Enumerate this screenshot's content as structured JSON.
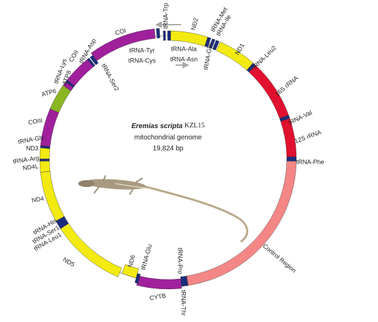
{
  "title": {
    "species": "Eremias scripta",
    "specimen": "KZL15",
    "subtitle": "mitochondrial genome",
    "length": "19,824 bp"
  },
  "labels": [
    "tRNA-Trp",
    "ND2",
    "tRNA-Met",
    "tRNA-Ile",
    "tRNA-Gln",
    "ND1",
    "tRNA-Leu2",
    "16S rRNA",
    "tRNA-Val",
    "12S rRNA",
    "tRNA-Phe",
    "Control Region",
    "tRNA-Thr",
    "tRNA-Pro",
    "CYTB",
    "tRNA-Glu",
    "ND6",
    "ND5",
    "tRNA-Leu1",
    "tRNA-Ser1",
    "tRNA-His",
    "ND4",
    "ND4L",
    "tRNA-Arg",
    "ND3",
    "tRNA-Gly",
    "COIII",
    "ATP6",
    "ATP8",
    "tRNA-Lys",
    "COII",
    "tRNA-Asp",
    "tRNA-Ser2",
    "COI",
    "tRNA-Tyr",
    "tRNA-Cys",
    "tRNA-Ala",
    "tRNA-Asn"
  ]
}
